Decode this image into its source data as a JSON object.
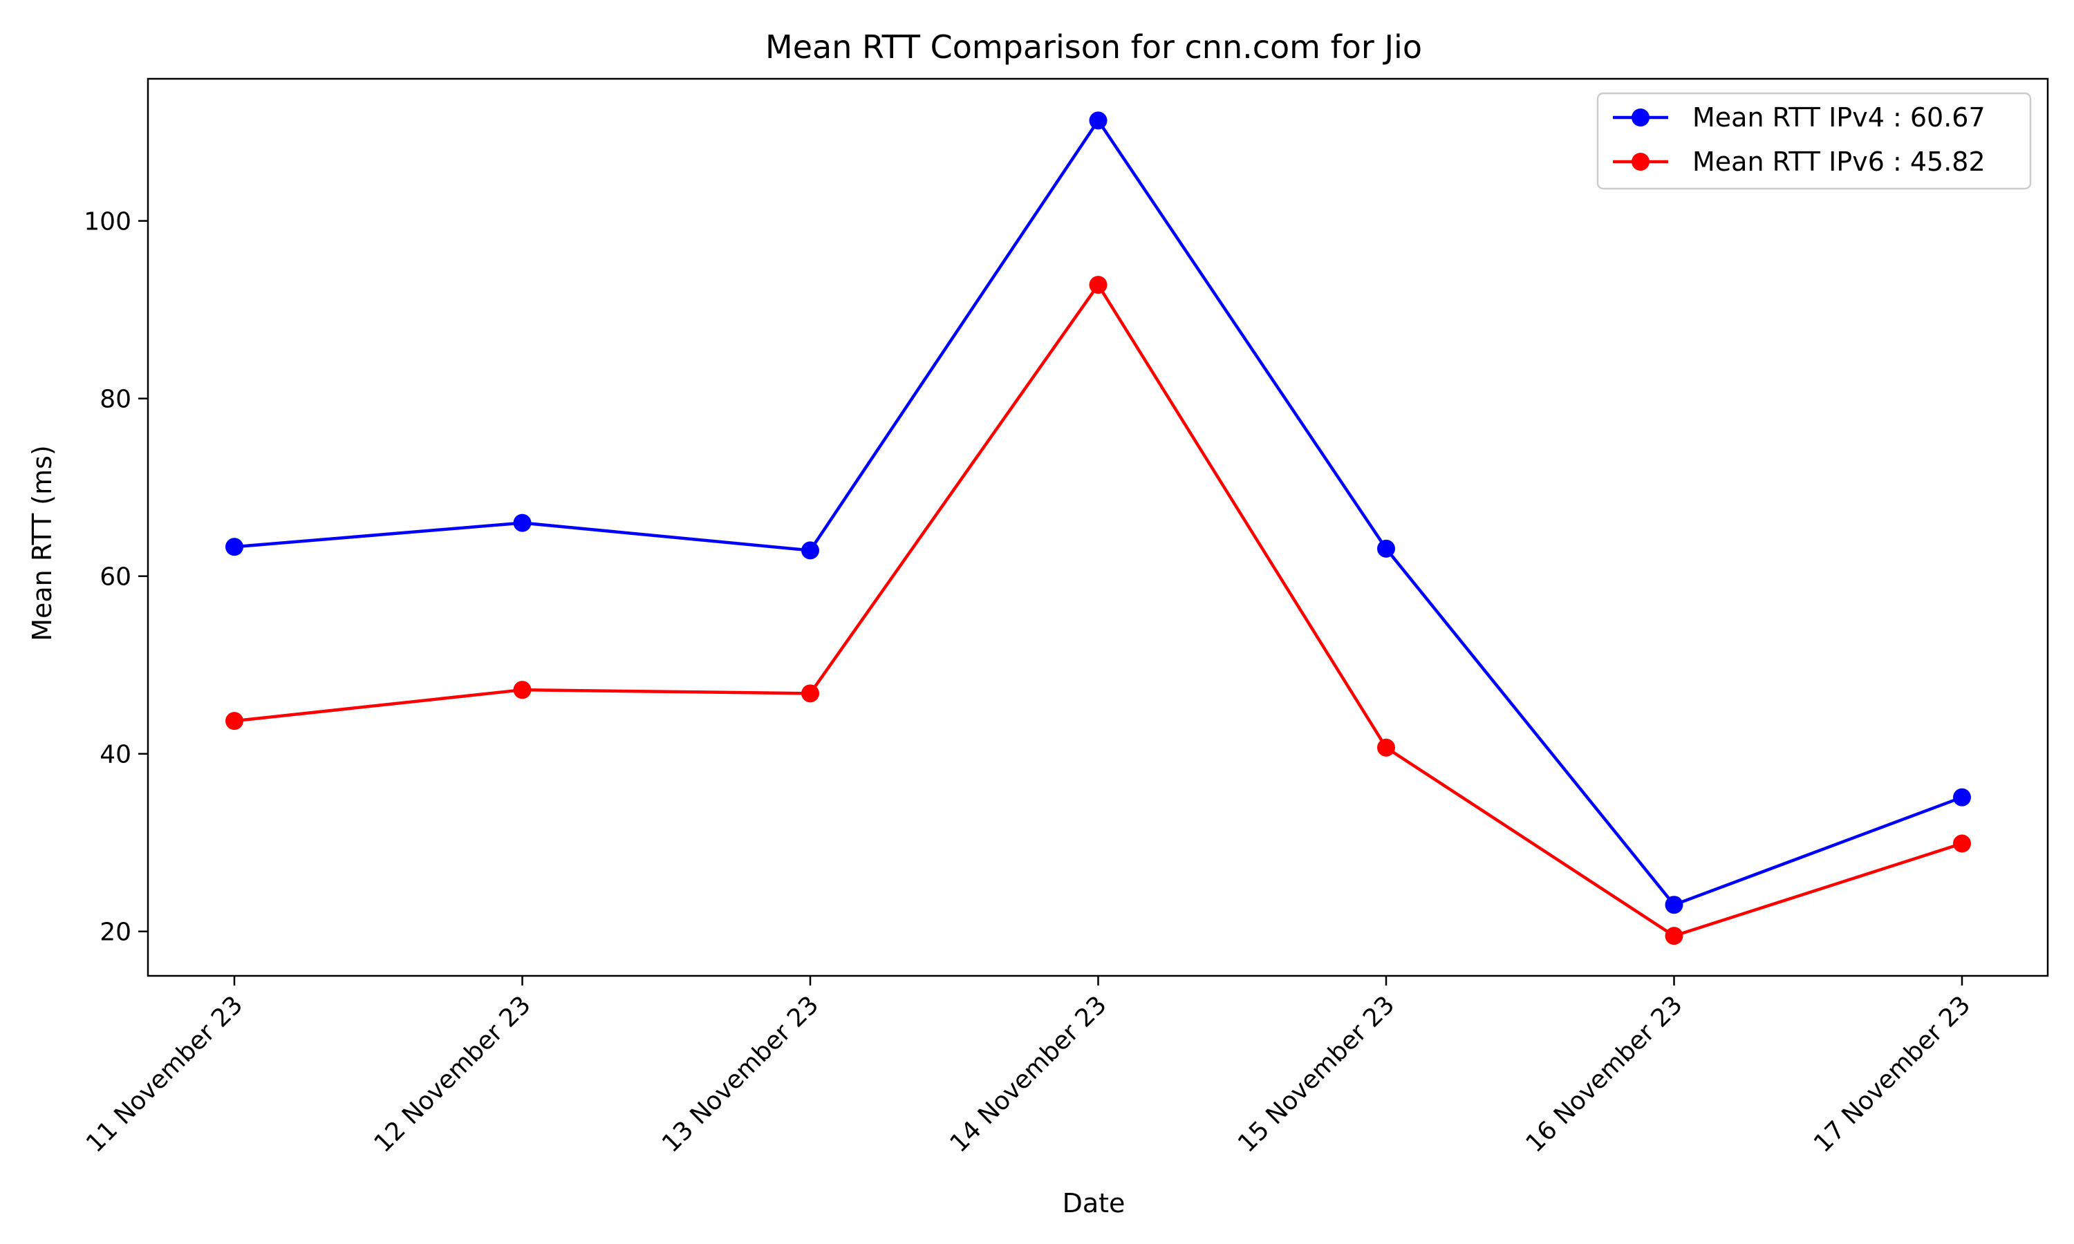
{
  "chart_data": {
    "type": "line",
    "title": "Mean RTT Comparison for cnn.com for Jio",
    "xlabel": "Date",
    "ylabel": "Mean RTT (ms)",
    "categories": [
      "11 November 23",
      "12 November 23",
      "13 November 23",
      "14 November 23",
      "15 November 23",
      "16 November 23",
      "17 November 23"
    ],
    "ylim": [
      15,
      116
    ],
    "yticks": [
      20,
      40,
      60,
      80,
      100
    ],
    "grid": false,
    "legend_position": "top-right",
    "series": [
      {
        "name": "Mean RTT IPv4 : 60.67",
        "color": "#0000ff",
        "values": [
          63.3,
          66.0,
          62.9,
          111.3,
          63.1,
          23.0,
          35.1
        ]
      },
      {
        "name": "Mean RTT IPv6 : 45.82",
        "color": "#ff0000",
        "values": [
          43.7,
          47.2,
          46.8,
          92.8,
          40.7,
          19.5,
          29.9
        ]
      }
    ]
  }
}
